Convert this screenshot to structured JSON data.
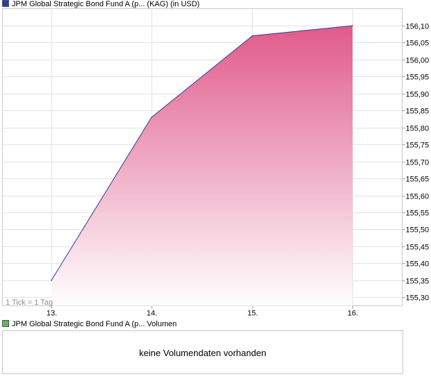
{
  "legend": {
    "price_series": "JPM Global Strategic Bond Fund A (p... (KAG) (in USD)",
    "price_color": "#2a3f9c",
    "volume_series": "JPM Global Strategic Bond Fund A (p... Volumen",
    "volume_color": "#5cb85c"
  },
  "tick_note": "1 Tick = 1 Tag",
  "volume_message": "keine Volumendaten vorhanden",
  "chart_data": {
    "type": "area",
    "categories": [
      "13.",
      "14.",
      "15.",
      "16."
    ],
    "values": [
      155.35,
      155.83,
      156.07,
      156.1
    ],
    "y_ticks": [
      "155,30",
      "155,35",
      "155,40",
      "155,45",
      "155,50",
      "155,55",
      "155,60",
      "155,65",
      "155,70",
      "155,75",
      "155,80",
      "155,85",
      "155,90",
      "155,95",
      "156,00",
      "156,05",
      "156,10"
    ],
    "ylim": [
      155.275,
      156.15
    ],
    "grid": true,
    "line_color": "#2a3f9c",
    "fill_top_color": "#e05a8a",
    "fill_bottom_color": "#ffffff"
  }
}
